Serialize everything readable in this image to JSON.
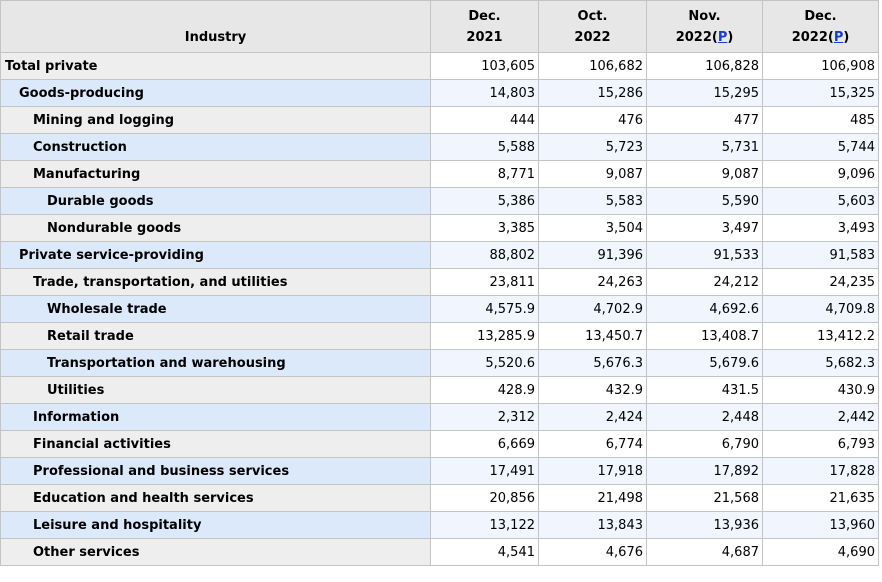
{
  "header": {
    "stub": "Industry",
    "columns": [
      {
        "line1": "Dec.",
        "line2": "2021",
        "prelim": ""
      },
      {
        "line1": "Oct.",
        "line2": "2022",
        "prelim": ""
      },
      {
        "line1": "Nov.",
        "line2": "2022(",
        "prelim": "P",
        "close": ")"
      },
      {
        "line1": "Dec.",
        "line2": "2022(",
        "prelim": "P",
        "close": ")"
      }
    ]
  },
  "rows": [
    {
      "label": "Total private",
      "level": 0,
      "values": [
        "103,605",
        "106,682",
        "106,828",
        "106,908"
      ]
    },
    {
      "label": "Goods-producing",
      "level": 1,
      "values": [
        "14,803",
        "15,286",
        "15,295",
        "15,325"
      ]
    },
    {
      "label": "Mining and logging",
      "level": 2,
      "values": [
        "444",
        "476",
        "477",
        "485"
      ]
    },
    {
      "label": "Construction",
      "level": 2,
      "values": [
        "5,588",
        "5,723",
        "5,731",
        "5,744"
      ]
    },
    {
      "label": "Manufacturing",
      "level": 2,
      "values": [
        "8,771",
        "9,087",
        "9,087",
        "9,096"
      ]
    },
    {
      "label": "Durable goods",
      "level": 3,
      "values": [
        "5,386",
        "5,583",
        "5,590",
        "5,603"
      ]
    },
    {
      "label": "Nondurable goods",
      "level": 3,
      "values": [
        "3,385",
        "3,504",
        "3,497",
        "3,493"
      ]
    },
    {
      "label": "Private service-providing",
      "level": 1,
      "values": [
        "88,802",
        "91,396",
        "91,533",
        "91,583"
      ]
    },
    {
      "label": "Trade, transportation, and utilities",
      "level": 2,
      "values": [
        "23,811",
        "24,263",
        "24,212",
        "24,235"
      ]
    },
    {
      "label": "Wholesale trade",
      "level": 3,
      "values": [
        "4,575.9",
        "4,702.9",
        "4,692.6",
        "4,709.8"
      ]
    },
    {
      "label": "Retail trade",
      "level": 3,
      "values": [
        "13,285.9",
        "13,450.7",
        "13,408.7",
        "13,412.2"
      ]
    },
    {
      "label": "Transportation and warehousing",
      "level": 3,
      "values": [
        "5,520.6",
        "5,676.3",
        "5,679.6",
        "5,682.3"
      ]
    },
    {
      "label": "Utilities",
      "level": 3,
      "values": [
        "428.9",
        "432.9",
        "431.5",
        "430.9"
      ]
    },
    {
      "label": "Information",
      "level": 2,
      "values": [
        "2,312",
        "2,424",
        "2,448",
        "2,442"
      ]
    },
    {
      "label": "Financial activities",
      "level": 2,
      "values": [
        "6,669",
        "6,774",
        "6,790",
        "6,793"
      ]
    },
    {
      "label": "Professional and business services",
      "level": 2,
      "values": [
        "17,491",
        "17,918",
        "17,892",
        "17,828"
      ]
    },
    {
      "label": "Education and health services",
      "level": 2,
      "values": [
        "20,856",
        "21,498",
        "21,568",
        "21,635"
      ]
    },
    {
      "label": "Leisure and hospitality",
      "level": 2,
      "values": [
        "13,122",
        "13,843",
        "13,936",
        "13,960"
      ]
    },
    {
      "label": "Other services",
      "level": 2,
      "values": [
        "4,541",
        "4,676",
        "4,687",
        "4,690"
      ]
    }
  ]
}
